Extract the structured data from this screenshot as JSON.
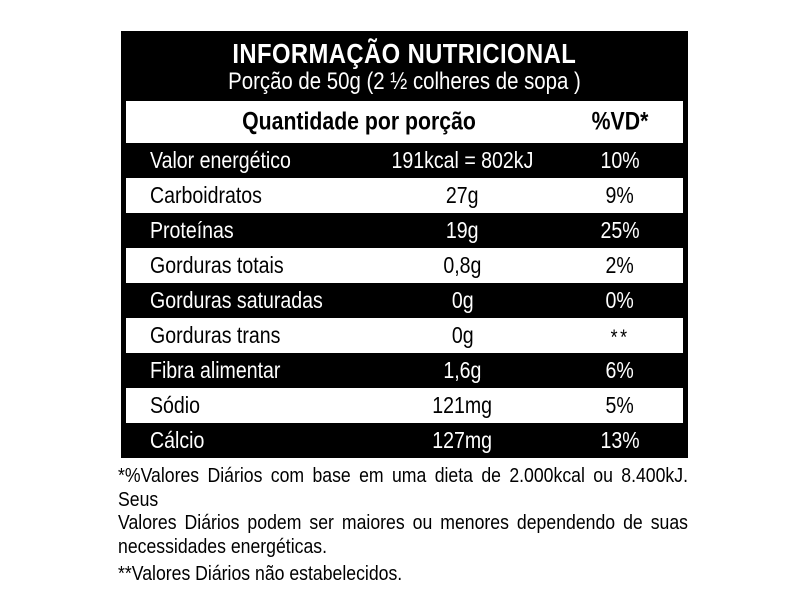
{
  "label": {
    "title": "INFORMAÇÃO NUTRICIONAL",
    "portion": "Porção de 50g (2 ½ colheres de sopa )",
    "columns": {
      "quantity_header": "Quantidade por porção",
      "dv_header": "%VD*"
    },
    "rows": [
      {
        "name": "Valor energético",
        "value": "191kcal = 802kJ",
        "dv": "10%"
      },
      {
        "name": "Carboidratos",
        "value": "27g",
        "dv": "9%"
      },
      {
        "name": "Proteínas",
        "value": "19g",
        "dv": "25%"
      },
      {
        "name": "Gorduras totais",
        "value": "0,8g",
        "dv": "2%"
      },
      {
        "name": "Gorduras saturadas",
        "value": "0g",
        "dv": "0%"
      },
      {
        "name": "Gorduras trans",
        "value": "0g",
        "dv": "**"
      },
      {
        "name": "Fibra alimentar",
        "value": "1,6g",
        "dv": "6%"
      },
      {
        "name": "Sódio",
        "value": "121mg",
        "dv": "5%"
      },
      {
        "name": "Cálcio",
        "value": "127mg",
        "dv": "13%"
      }
    ]
  },
  "footnotes": {
    "daily_values_lines": [
      "*%Valores Diários com base em uma dieta de 2.000kcal ou 8.400kJ. Seus",
      "Valores Diários podem ser maiores ou menores dependendo de suas",
      "necessidades energéticas."
    ],
    "not_established": "**Valores Diários não estabelecidos."
  },
  "colors": {
    "label_background": "#000000",
    "label_text": "#ffffff",
    "page_background": "#ffffff",
    "body_text": "#000000"
  }
}
